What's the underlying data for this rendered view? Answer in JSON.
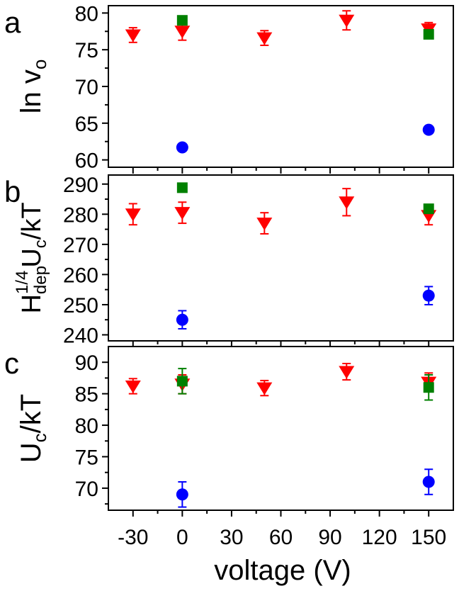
{
  "figure": {
    "x_label": "voltage (V)"
  },
  "chart_data": [
    {
      "type": "scatter",
      "panel_label": "a",
      "ylabel_main": "ln v",
      "ylabel_sub": "o",
      "ylim": [
        59,
        81
      ],
      "yticks": [
        60,
        65,
        70,
        75,
        80
      ],
      "xlim": [
        -45,
        165
      ],
      "xticks": [
        -30,
        0,
        30,
        60,
        90,
        120,
        150
      ],
      "series": [
        {
          "color": "#ff0000",
          "marker": "triangle-down",
          "points": [
            {
              "x": -30,
              "y": 77.0,
              "err": 1.0
            },
            {
              "x": 0,
              "y": 77.5,
              "err": 1.2
            },
            {
              "x": 50,
              "y": 76.6,
              "err": 1.0
            },
            {
              "x": 100,
              "y": 79.0,
              "err": 1.3
            },
            {
              "x": 150,
              "y": 77.8,
              "err": 0.9
            }
          ]
        },
        {
          "color": "#008000",
          "marker": "square",
          "points": [
            {
              "x": 0,
              "y": 79.0,
              "err": 0.3
            },
            {
              "x": 150,
              "y": 77.1,
              "err": 0.3
            }
          ]
        },
        {
          "color": "#0000ff",
          "marker": "circle",
          "points": [
            {
              "x": 0,
              "y": 61.7,
              "err": 0.4
            },
            {
              "x": 150,
              "y": 64.1,
              "err": 0.4
            }
          ]
        }
      ]
    },
    {
      "type": "scatter",
      "panel_label": "b",
      "ylabel_parts": [
        "H",
        "dep",
        "1/4",
        "U",
        "c",
        "/kT"
      ],
      "ylim": [
        238,
        293
      ],
      "yticks": [
        240,
        250,
        260,
        270,
        280,
        290
      ],
      "xlim": [
        -45,
        165
      ],
      "xticks": [
        -30,
        0,
        30,
        60,
        90,
        120,
        150
      ],
      "series": [
        {
          "color": "#ff0000",
          "marker": "triangle-down",
          "points": [
            {
              "x": -30,
              "y": 280.0,
              "err": 3.5
            },
            {
              "x": 0,
              "y": 280.5,
              "err": 3.5
            },
            {
              "x": 50,
              "y": 277.0,
              "err": 3.5
            },
            {
              "x": 100,
              "y": 284.0,
              "err": 4.5
            },
            {
              "x": 150,
              "y": 279.5,
              "err": 3.0
            }
          ]
        },
        {
          "color": "#008000",
          "marker": "square",
          "points": [
            {
              "x": 0,
              "y": 288.8,
              "err": 0.8
            },
            {
              "x": 150,
              "y": 281.8,
              "err": 0.8
            }
          ]
        },
        {
          "color": "#0000ff",
          "marker": "circle",
          "points": [
            {
              "x": 0,
              "y": 245.0,
              "err": 3.0
            },
            {
              "x": 150,
              "y": 253.0,
              "err": 3.0
            }
          ]
        }
      ]
    },
    {
      "type": "scatter",
      "panel_label": "c",
      "ylabel_parts": [
        "U",
        "c",
        "/kT"
      ],
      "ylim": [
        66.5,
        92.5
      ],
      "yticks": [
        70,
        75,
        80,
        85,
        90
      ],
      "xlim": [
        -45,
        165
      ],
      "xticks": [
        -30,
        0,
        30,
        60,
        90,
        120,
        150
      ],
      "series": [
        {
          "color": "#ff0000",
          "marker": "triangle-down",
          "points": [
            {
              "x": -30,
              "y": 86.2,
              "err": 1.2
            },
            {
              "x": 0,
              "y": 86.5,
              "err": 1.5
            },
            {
              "x": 50,
              "y": 85.9,
              "err": 1.2
            },
            {
              "x": 100,
              "y": 88.5,
              "err": 1.3
            },
            {
              "x": 150,
              "y": 86.8,
              "err": 1.5
            }
          ]
        },
        {
          "color": "#008000",
          "marker": "square",
          "points": [
            {
              "x": 0,
              "y": 87.0,
              "err": 2.0
            },
            {
              "x": 150,
              "y": 86.0,
              "err": 2.0
            }
          ]
        },
        {
          "color": "#0000ff",
          "marker": "circle",
          "points": [
            {
              "x": 0,
              "y": 69.0,
              "err": 2.0
            },
            {
              "x": 150,
              "y": 71.0,
              "err": 2.0
            }
          ]
        }
      ]
    }
  ]
}
